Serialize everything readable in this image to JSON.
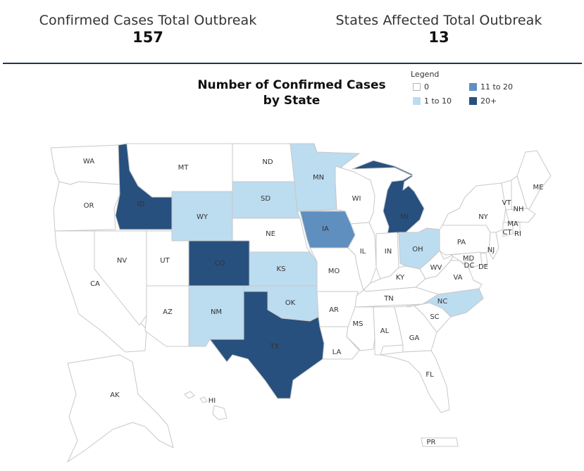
{
  "header": {
    "confirmed_label": "Confirmed Cases Total Outbreak",
    "confirmed_value": "157",
    "states_label": "States Affected Total Outbreak",
    "states_value": "13"
  },
  "map": {
    "title_line1": "Number of Confirmed Cases",
    "title_line2": "by State"
  },
  "legend": {
    "title": "Legend",
    "items": [
      {
        "label": "0",
        "color": "#ffffff"
      },
      {
        "label": "1 to 10",
        "color": "#bcdcf0"
      },
      {
        "label": "11 to 20",
        "color": "#5f8fbf"
      },
      {
        "label": "20+",
        "color": "#27507e"
      }
    ]
  },
  "states": {
    "WA": "0",
    "OR": "0",
    "CA": "0",
    "NV": "0",
    "ID": "20+",
    "MT": "0",
    "WY": "1 to 10",
    "UT": "0",
    "AZ": "0",
    "CO": "20+",
    "NM": "1 to 10",
    "ND": "0",
    "SD": "1 to 10",
    "NE": "0",
    "KS": "1 to 10",
    "OK": "1 to 10",
    "TX": "20+",
    "MN": "1 to 10",
    "IA": "11 to 20",
    "MO": "0",
    "AR": "0",
    "LA": "0",
    "WI": "0",
    "IL": "0",
    "MI": "20+",
    "IN": "0",
    "OH": "1 to 10",
    "KY": "0",
    "TN": "0",
    "MS": "0",
    "AL": "0",
    "GA": "0",
    "FL": "0",
    "SC": "0",
    "NC": "1 to 10",
    "VA": "0",
    "WV": "0",
    "PA": "0",
    "NY": "0",
    "VT": "0",
    "NH": "0",
    "ME": "0",
    "MA": "0",
    "CT": "0",
    "RI": "0",
    "NJ": "0",
    "DE": "0",
    "MD": "0",
    "DC": "0",
    "AK": "0",
    "HI": "0",
    "PR": "0"
  }
}
